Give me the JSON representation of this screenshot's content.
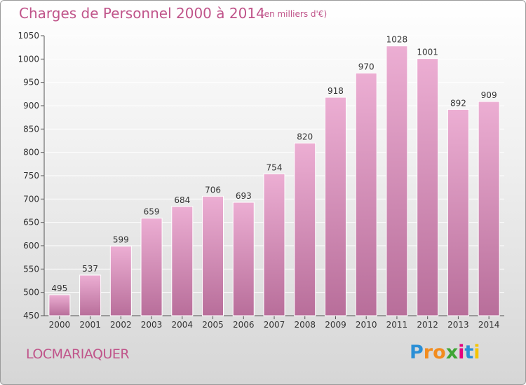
{
  "header": {
    "title": "Charges de Personnel 2000 à 2014",
    "subtitle": "(en milliers d'€)"
  },
  "footer": {
    "location": "LOCMARIAQUER",
    "logo": {
      "letters": [
        "P",
        "r",
        "o",
        "x",
        "i",
        "t",
        "i"
      ],
      "colors": [
        "#2b8fd6",
        "#f28c1e",
        "#f28c1e",
        "#3fa535",
        "#e6007e",
        "#2b8fd6",
        "#f5c400"
      ]
    }
  },
  "colors": {
    "accent": "#c0548a",
    "bar_top": "#ecaed3",
    "bar_bottom": "#b86e9a",
    "grid": "#ffffff"
  },
  "chart_data": {
    "type": "bar",
    "title": "Charges de Personnel 2000 à 2014",
    "subtitle": "(en milliers d'€)",
    "xlabel": "",
    "ylabel": "",
    "categories": [
      "2000",
      "2001",
      "2002",
      "2003",
      "2004",
      "2005",
      "2006",
      "2007",
      "2008",
      "2009",
      "2010",
      "2011",
      "2012",
      "2013",
      "2014"
    ],
    "values": [
      495,
      537,
      599,
      659,
      684,
      706,
      693,
      754,
      820,
      918,
      970,
      1028,
      1001,
      892,
      909
    ],
    "ylim": [
      450,
      1050
    ],
    "yticks": [
      450,
      500,
      550,
      600,
      650,
      700,
      750,
      800,
      850,
      900,
      950,
      1000,
      1050
    ],
    "grid": true,
    "legend": "none"
  }
}
